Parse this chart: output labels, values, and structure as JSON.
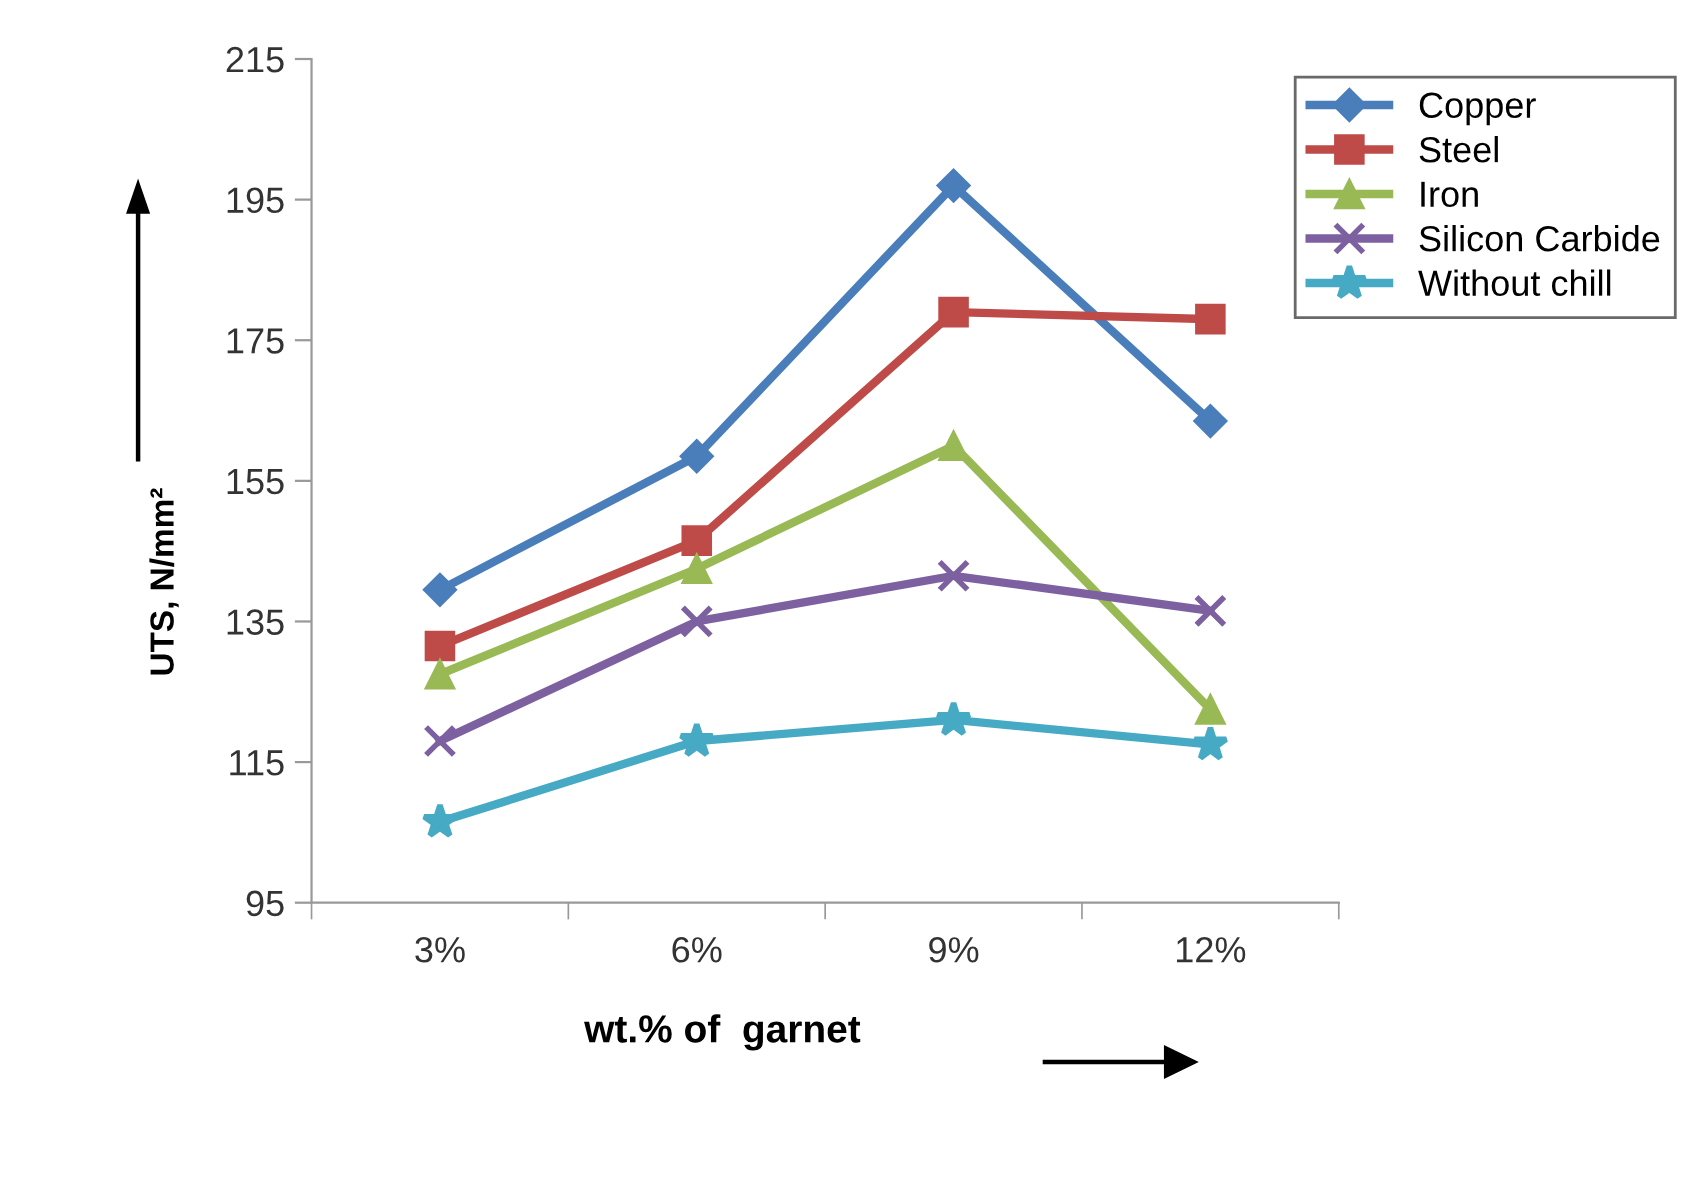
{
  "chart_data": {
    "type": "line",
    "xlabel": "wt.% of  garnet",
    "ylabel": "UTS, N/mm²",
    "categories": [
      "3%",
      "6%",
      "9%",
      "12%"
    ],
    "series": [
      {
        "name": "Copper",
        "color": "#4a7ebb",
        "marker": "diamond",
        "values": [
          139.5,
          158.5,
          197,
          163.5
        ]
      },
      {
        "name": "Steel",
        "color": "#be4b48",
        "marker": "square",
        "values": [
          131.5,
          146.5,
          179,
          178
        ]
      },
      {
        "name": "Iron",
        "color": "#98b954",
        "marker": "triangle",
        "values": [
          127.5,
          142.5,
          160,
          122.5
        ]
      },
      {
        "name": "Silicon Carbide",
        "color": "#7d60a0",
        "marker": "cross",
        "values": [
          118,
          135,
          141.5,
          136.5
        ]
      },
      {
        "name": "Without chill",
        "color": "#46aac5",
        "marker": "star",
        "values": [
          106.5,
          118,
          121,
          117.5
        ]
      }
    ],
    "ylim": [
      95,
      215
    ],
    "yticks": [
      95,
      115,
      135,
      155,
      175,
      195,
      215
    ],
    "grid": false,
    "legend": "top right"
  }
}
